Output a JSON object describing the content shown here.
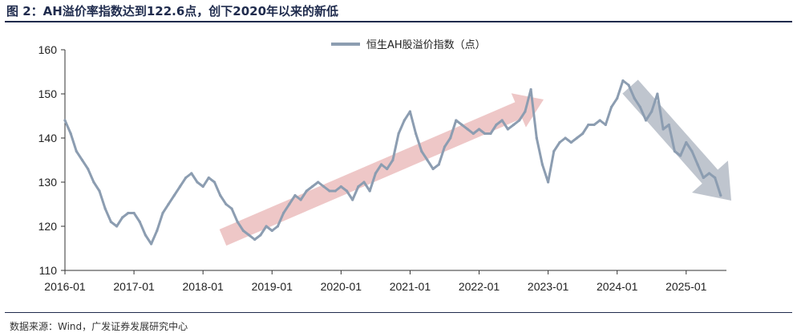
{
  "header": {
    "title": "图 2：AH溢价率指数达到122.6点，创下2020年以来的新低"
  },
  "footer": {
    "source": "数据来源：Wind，广发证券发展研究中心"
  },
  "colors": {
    "series": "#8c9db1",
    "up_arrow": "#e8b4b4",
    "down_arrow": "#a9b2bd",
    "title_rule": "#1f2b4d"
  },
  "chart_data": {
    "type": "line",
    "title": "",
    "xlabel": "",
    "ylabel": "",
    "ylim": [
      110,
      160
    ],
    "yticks": [
      110,
      120,
      130,
      140,
      150,
      160
    ],
    "xlim": [
      "2016-01",
      "2025-08"
    ],
    "xticks": [
      "2016-01",
      "2017-01",
      "2018-01",
      "2019-01",
      "2020-01",
      "2021-01",
      "2022-01",
      "2023-01",
      "2024-01",
      "2025-01"
    ],
    "grid": false,
    "legend": "top-center",
    "series": [
      {
        "name": "恒生AH股溢价指数（点）",
        "x": [
          "2016-01",
          "2016-02",
          "2016-03",
          "2016-04",
          "2016-05",
          "2016-06",
          "2016-07",
          "2016-08",
          "2016-09",
          "2016-10",
          "2016-11",
          "2016-12",
          "2017-01",
          "2017-02",
          "2017-03",
          "2017-04",
          "2017-05",
          "2017-06",
          "2017-07",
          "2017-08",
          "2017-09",
          "2017-10",
          "2017-11",
          "2017-12",
          "2018-01",
          "2018-02",
          "2018-03",
          "2018-04",
          "2018-05",
          "2018-06",
          "2018-07",
          "2018-08",
          "2018-09",
          "2018-10",
          "2018-11",
          "2018-12",
          "2019-01",
          "2019-02",
          "2019-03",
          "2019-04",
          "2019-05",
          "2019-06",
          "2019-07",
          "2019-08",
          "2019-09",
          "2019-10",
          "2019-11",
          "2019-12",
          "2020-01",
          "2020-02",
          "2020-03",
          "2020-04",
          "2020-05",
          "2020-06",
          "2020-07",
          "2020-08",
          "2020-09",
          "2020-10",
          "2020-11",
          "2020-12",
          "2021-01",
          "2021-02",
          "2021-03",
          "2021-04",
          "2021-05",
          "2021-06",
          "2021-07",
          "2021-08",
          "2021-09",
          "2021-10",
          "2021-11",
          "2021-12",
          "2022-01",
          "2022-02",
          "2022-03",
          "2022-04",
          "2022-05",
          "2022-06",
          "2022-07",
          "2022-08",
          "2022-09",
          "2022-10",
          "2022-11",
          "2022-12",
          "2023-01",
          "2023-02",
          "2023-03",
          "2023-04",
          "2023-05",
          "2023-06",
          "2023-07",
          "2023-08",
          "2023-09",
          "2023-10",
          "2023-11",
          "2023-12",
          "2024-01",
          "2024-02",
          "2024-03",
          "2024-04",
          "2024-05",
          "2024-06",
          "2024-07",
          "2024-08",
          "2024-09",
          "2024-10",
          "2024-11",
          "2024-12",
          "2025-01",
          "2025-02",
          "2025-03",
          "2025-04",
          "2025-05",
          "2025-06",
          "2025-07"
        ],
        "values": [
          144,
          141,
          137,
          135,
          133,
          130,
          128,
          124,
          121,
          120,
          122,
          123,
          123,
          121,
          118,
          116,
          119,
          123,
          125,
          127,
          129,
          131,
          132,
          130,
          129,
          131,
          130,
          127,
          125,
          124,
          121,
          119,
          118,
          117,
          118,
          120,
          119,
          120,
          123,
          125,
          127,
          126,
          128,
          129,
          130,
          129,
          128,
          128,
          129,
          128,
          126,
          129,
          130,
          128,
          132,
          134,
          133,
          135,
          141,
          144,
          146,
          141,
          137,
          135,
          133,
          134,
          138,
          140,
          144,
          143,
          142,
          141,
          142,
          141,
          141,
          143,
          144,
          142,
          143,
          144,
          146,
          151,
          140,
          134,
          130,
          137,
          139,
          140,
          139,
          140,
          141,
          143,
          143,
          144,
          143,
          147,
          149,
          153,
          152,
          149,
          147,
          144,
          146,
          150,
          142,
          143,
          137,
          136,
          139,
          137,
          134,
          131,
          132,
          131,
          127
        ]
      }
    ]
  }
}
